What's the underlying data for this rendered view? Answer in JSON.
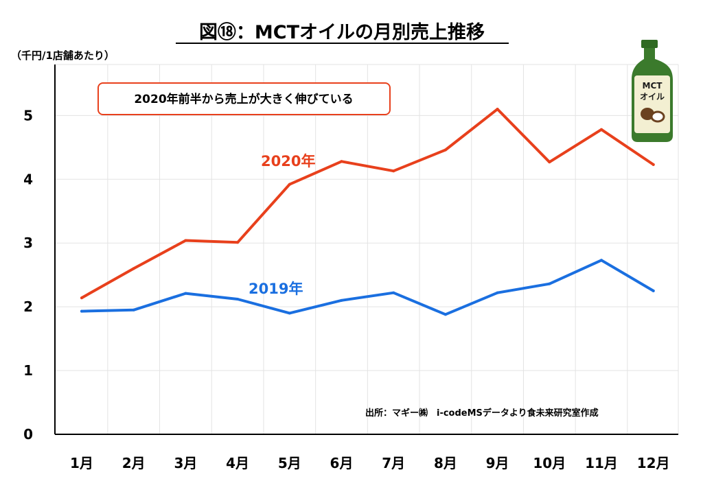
{
  "chart_data": {
    "type": "line",
    "title": "図⑱：MCTオイルの月別売上推移",
    "ylabel": "（千円/1店舗あたり）",
    "xlabel": "",
    "categories": [
      "1月",
      "2月",
      "3月",
      "4月",
      "5月",
      "6月",
      "7月",
      "8月",
      "9月",
      "10月",
      "11月",
      "12月"
    ],
    "ylim": [
      0,
      5.8
    ],
    "yticks": [
      0,
      1,
      2,
      3,
      4,
      5
    ],
    "grid": true,
    "series": [
      {
        "name": "2020年",
        "color": "#e8401c",
        "values": [
          2.14,
          2.6,
          3.04,
          3.01,
          3.92,
          4.28,
          4.13,
          4.46,
          5.1,
          4.27,
          4.78,
          4.23
        ]
      },
      {
        "name": "2019年",
        "color": "#1a6fe0",
        "values": [
          1.93,
          1.95,
          2.21,
          2.12,
          1.9,
          2.1,
          2.22,
          1.88,
          2.22,
          2.36,
          2.73,
          2.25
        ]
      }
    ],
    "annotation": "2020年前半から売上が大きく伸びている",
    "source": "出所：マギー㈱　i-codeMSデータより食未来研究室作成"
  },
  "bottle": {
    "label_line1": "MCT",
    "label_line2": "オイル",
    "glass_color": "#3b7a2c",
    "label_color": "#f3efd2"
  }
}
